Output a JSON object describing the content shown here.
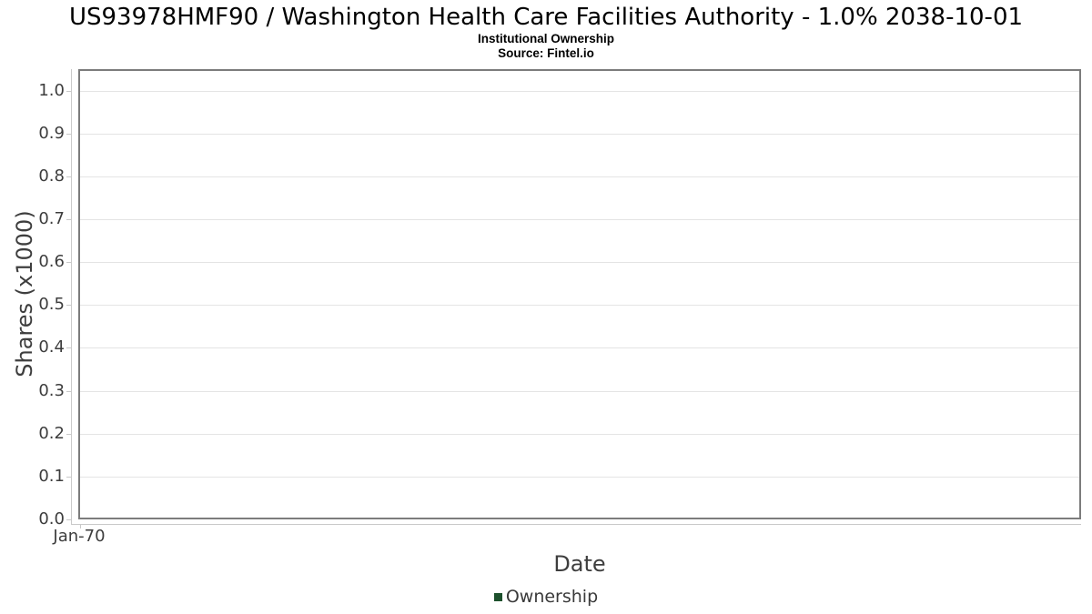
{
  "header": {
    "title": "US93978HMF90 / Washington Health Care Facilities Authority - 1.0% 2038-10-01",
    "subtitle": "Institutional Ownership",
    "source": "Source: Fintel.io"
  },
  "chart_data": {
    "type": "line",
    "title": "US93978HMF90 / Washington Health Care Facilities Authority - 1.0% 2038-10-01",
    "subtitle": "Institutional Ownership",
    "source": "Source: Fintel.io",
    "xlabel": "Date",
    "ylabel": "Shares (x1000)",
    "x_ticks": [
      {
        "label": "Jan-70",
        "frac": 0.0
      }
    ],
    "y_ticks": [
      0.0,
      0.1,
      0.2,
      0.3,
      0.4,
      0.5,
      0.6,
      0.7,
      0.8,
      0.9,
      1.0
    ],
    "y_tick_decimals": 1,
    "ylim": [
      0,
      1.05
    ],
    "grid": true,
    "legend_position": "bottom",
    "series": [
      {
        "name": "Ownership",
        "color": "#1d512d",
        "x": [],
        "values": []
      }
    ],
    "note": "No data points are plotted; chart area is empty"
  },
  "colors": {
    "series_ownership": "#1d512d",
    "plot_border": "#7c7c7c",
    "gridline": "#e4e4e4",
    "axis_domain": "#c9c9c9",
    "tick_text": "#3d3d3d",
    "axis_title_text": "#3e3e3e",
    "title_text": "#000000",
    "background": "#ffffff"
  }
}
